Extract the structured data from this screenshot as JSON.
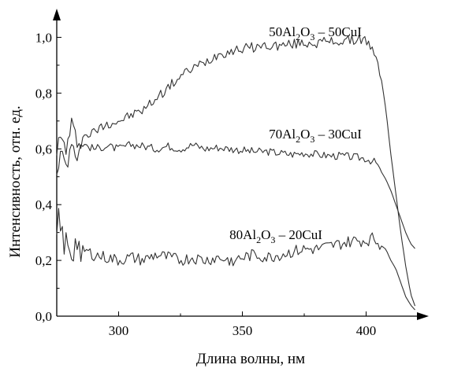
{
  "chart_data": {
    "type": "line",
    "title": "",
    "xlabel": "Длина волны, нм",
    "ylabel": "Интенсивность, отн. ед.",
    "xlim": [
      275,
      425
    ],
    "ylim": [
      0,
      1.1
    ],
    "x_ticks": [
      300,
      350,
      400
    ],
    "y_ticks": [
      0.0,
      0.2,
      0.4,
      0.6,
      0.8,
      1.0
    ],
    "x_tick_labels": [
      "300",
      "350",
      "400"
    ],
    "y_tick_labels": [
      "0,0",
      "0,2",
      "0,4",
      "0,6",
      "0,8",
      "1,0"
    ],
    "grid": false,
    "legend": "none",
    "line_color": "#333333",
    "series": [
      {
        "name": "50Al2O3 – 50CuI",
        "label": {
          "coef1": "50",
          "el1": "Al",
          "sub1": "2",
          "el2": "O",
          "sub2": "3",
          "rest": " – 50CuI"
        },
        "x": [
          275,
          277,
          279,
          281,
          283,
          285,
          290,
          295,
          300,
          305,
          310,
          315,
          320,
          325,
          330,
          335,
          340,
          345,
          350,
          355,
          360,
          365,
          370,
          375,
          380,
          385,
          390,
          395,
          398,
          400,
          402,
          404,
          406,
          408,
          410,
          412,
          414,
          416,
          418,
          420
        ],
        "y": [
          0.61,
          0.63,
          0.6,
          0.68,
          0.63,
          0.64,
          0.66,
          0.69,
          0.7,
          0.72,
          0.74,
          0.78,
          0.82,
          0.86,
          0.89,
          0.91,
          0.94,
          0.95,
          0.96,
          0.965,
          0.97,
          0.97,
          0.975,
          0.98,
          0.98,
          0.985,
          0.985,
          0.99,
          0.995,
          0.99,
          0.96,
          0.92,
          0.86,
          0.74,
          0.58,
          0.44,
          0.3,
          0.18,
          0.08,
          0.03
        ]
      },
      {
        "name": "70Al2O3 – 30CuI",
        "label": {
          "coef1": "70",
          "el1": "Al",
          "sub1": "2",
          "el2": "O",
          "sub2": "3",
          "rest": " – 30CuI"
        },
        "x": [
          275,
          277,
          279,
          281,
          283,
          285,
          290,
          295,
          300,
          305,
          310,
          315,
          320,
          325,
          330,
          335,
          340,
          345,
          350,
          355,
          360,
          365,
          370,
          375,
          380,
          385,
          390,
          395,
          400,
          404,
          406,
          408,
          410,
          412,
          414,
          416,
          418,
          420
        ],
        "y": [
          0.52,
          0.58,
          0.54,
          0.64,
          0.57,
          0.62,
          0.6,
          0.61,
          0.6,
          0.615,
          0.61,
          0.6,
          0.61,
          0.6,
          0.615,
          0.6,
          0.605,
          0.6,
          0.595,
          0.59,
          0.59,
          0.585,
          0.58,
          0.585,
          0.58,
          0.575,
          0.575,
          0.57,
          0.565,
          0.55,
          0.52,
          0.49,
          0.45,
          0.4,
          0.35,
          0.3,
          0.26,
          0.24
        ]
      },
      {
        "name": "80Al2O3 – 20CuI",
        "label": {
          "coef1": "80",
          "el1": "Al",
          "sub1": "2",
          "el2": "O",
          "sub2": "3",
          "rest": " – 20CuI"
        },
        "x": [
          275,
          276,
          277,
          278,
          279,
          281,
          283,
          285,
          290,
          295,
          300,
          305,
          310,
          315,
          320,
          325,
          330,
          335,
          340,
          345,
          350,
          355,
          360,
          365,
          370,
          375,
          380,
          385,
          390,
          395,
          400,
          403,
          405,
          408,
          410,
          412,
          414,
          416,
          418,
          420
        ],
        "y": [
          0.29,
          0.38,
          0.3,
          0.22,
          0.29,
          0.22,
          0.27,
          0.24,
          0.22,
          0.21,
          0.2,
          0.21,
          0.2,
          0.22,
          0.21,
          0.2,
          0.21,
          0.2,
          0.21,
          0.2,
          0.21,
          0.22,
          0.21,
          0.22,
          0.23,
          0.24,
          0.24,
          0.25,
          0.26,
          0.27,
          0.27,
          0.28,
          0.26,
          0.24,
          0.2,
          0.17,
          0.12,
          0.07,
          0.04,
          0.02
        ]
      }
    ]
  }
}
